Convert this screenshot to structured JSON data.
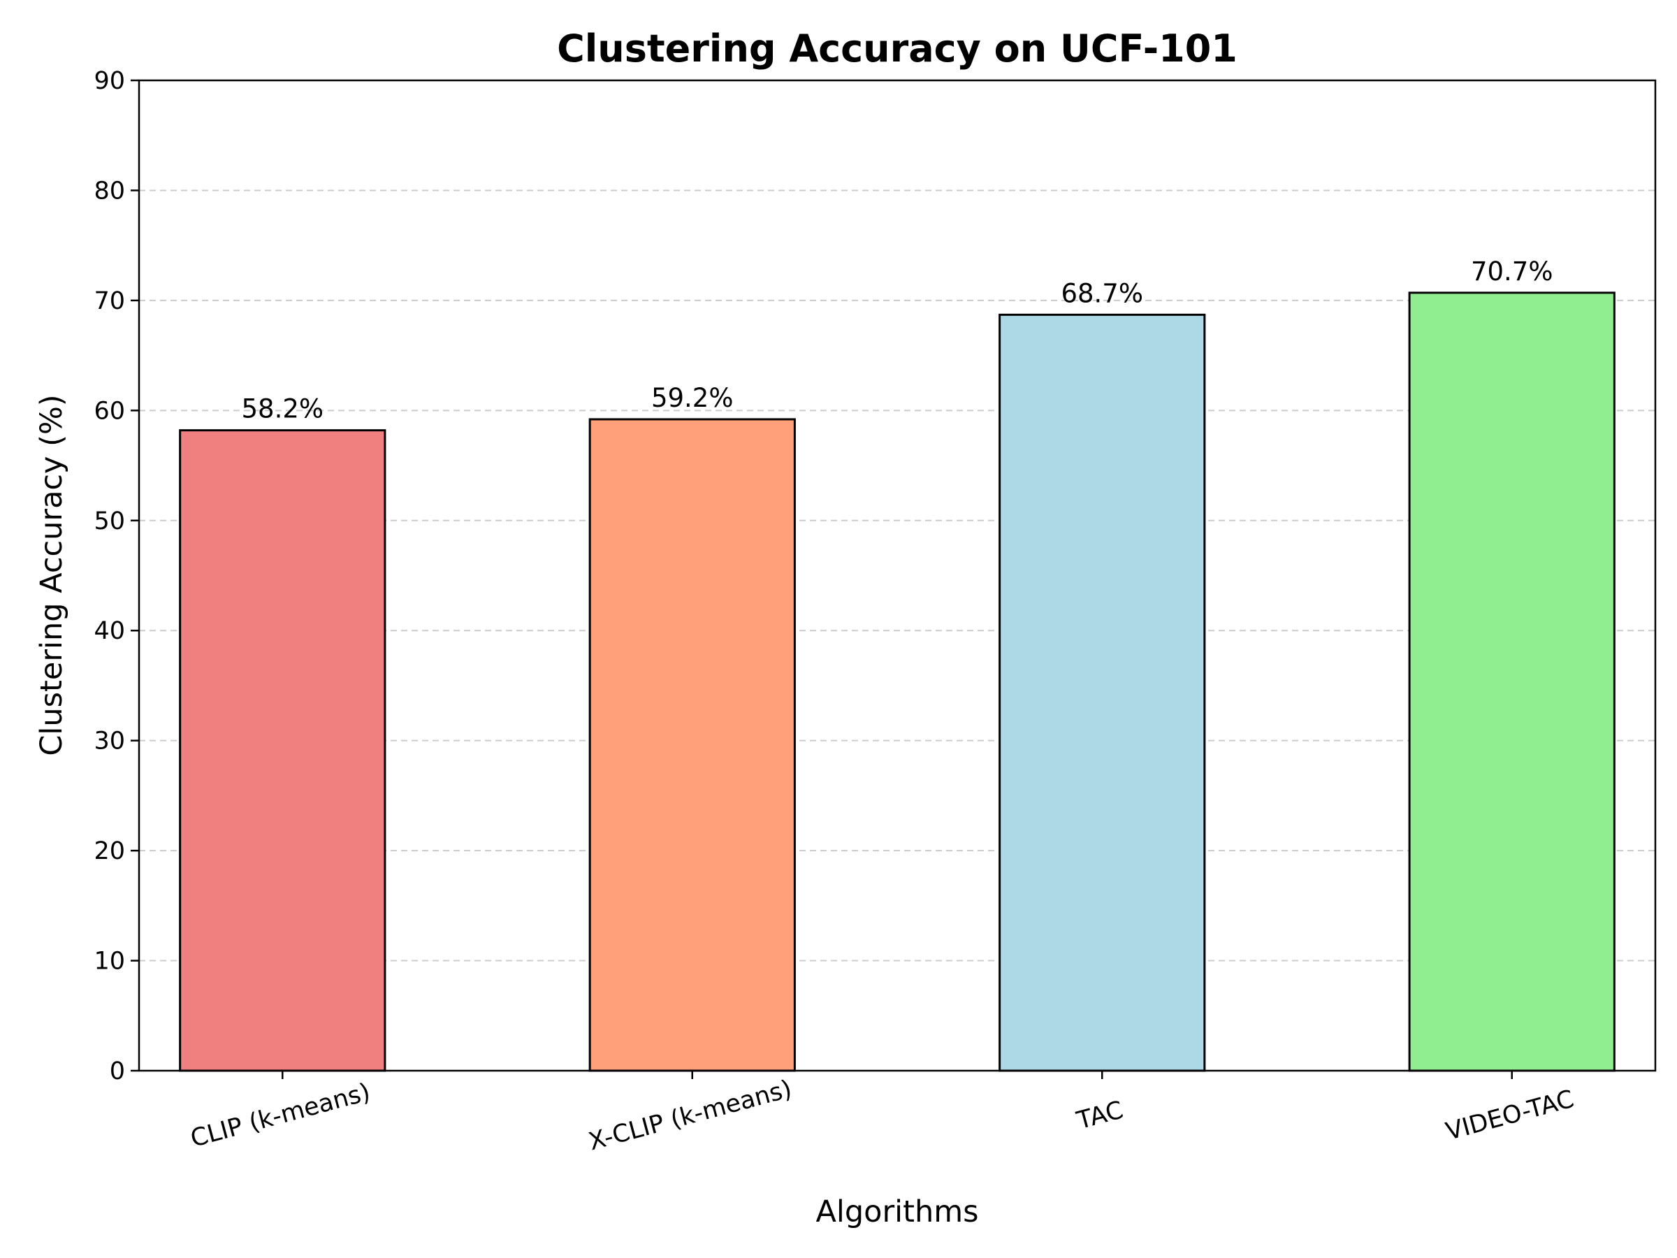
{
  "chart_data": {
    "type": "bar",
    "title": "Clustering Accuracy on UCF-101",
    "xlabel": "Algorithms",
    "ylabel": "Clustering Accuracy (%)",
    "ylim": [
      0,
      90
    ],
    "yticks": [
      0,
      10,
      20,
      30,
      40,
      50,
      60,
      70,
      80,
      90
    ],
    "categories": [
      "CLIP (k-means)",
      "X-CLIP (k-means)",
      "TAC",
      "VIDEO-TAC"
    ],
    "values": [
      58.2,
      59.2,
      68.7,
      70.7
    ],
    "data_labels": [
      "58.2%",
      "59.2%",
      "68.7%",
      "70.7%"
    ],
    "colors": [
      "#f08080",
      "#ffa07a",
      "#add8e6",
      "#90ee90"
    ],
    "grid": "horizontal dashed",
    "legend": "none"
  }
}
